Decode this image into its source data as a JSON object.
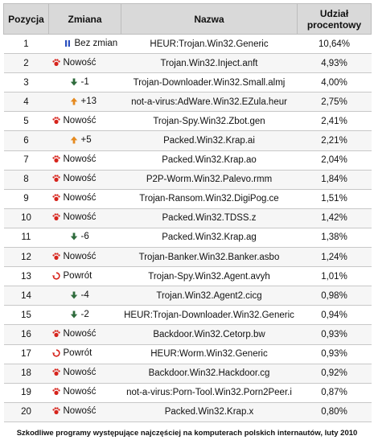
{
  "headers": {
    "position": "Pozycja",
    "change": "Zmiana",
    "name": "Nazwa",
    "share_line1": "Udział",
    "share_line2": "procentowy"
  },
  "icon_colors": {
    "new": "#d6231b",
    "return": "#d6231b",
    "down": "#2e6b3c",
    "up": "#e58a1f",
    "same": "#2a4fbf"
  },
  "rows": [
    {
      "pos": "1",
      "icon": "same-icon",
      "change": "Bez zmian",
      "name": "HEUR:Trojan.Win32.Generic",
      "pct": "10,64%"
    },
    {
      "pos": "2",
      "icon": "new-icon",
      "change": "Nowość",
      "name": "Trojan.Win32.Inject.anft",
      "pct": "4,93%"
    },
    {
      "pos": "3",
      "icon": "down-arrow-icon",
      "change": "-1",
      "name": "Trojan-Downloader.Win32.Small.almj",
      "pct": "4,00%"
    },
    {
      "pos": "4",
      "icon": "up-arrow-icon",
      "change": "+13",
      "name": "not-a-virus:AdWare.Win32.EZula.heur",
      "pct": "2,75%"
    },
    {
      "pos": "5",
      "icon": "new-icon",
      "change": "Nowość",
      "name": "Trojan-Spy.Win32.Zbot.gen",
      "pct": "2,41%"
    },
    {
      "pos": "6",
      "icon": "up-arrow-icon",
      "change": "+5",
      "name": "Packed.Win32.Krap.ai",
      "pct": "2,21%"
    },
    {
      "pos": "7",
      "icon": "new-icon",
      "change": "Nowość",
      "name": "Packed.Win32.Krap.ao",
      "pct": "2,04%"
    },
    {
      "pos": "8",
      "icon": "new-icon",
      "change": "Nowość",
      "name": "P2P-Worm.Win32.Palevo.rmm",
      "pct": "1,84%"
    },
    {
      "pos": "9",
      "icon": "new-icon",
      "change": "Nowość",
      "name": "Trojan-Ransom.Win32.DigiPog.ce",
      "pct": "1,51%"
    },
    {
      "pos": "10",
      "icon": "new-icon",
      "change": "Nowość",
      "name": "Packed.Win32.TDSS.z",
      "pct": "1,42%"
    },
    {
      "pos": "11",
      "icon": "down-arrow-icon",
      "change": "-6",
      "name": "Packed.Win32.Krap.ag",
      "pct": "1,38%"
    },
    {
      "pos": "12",
      "icon": "new-icon",
      "change": "Nowość",
      "name": "Trojan-Banker.Win32.Banker.asbo",
      "pct": "1,24%"
    },
    {
      "pos": "13",
      "icon": "return-icon",
      "change": "Powrót",
      "name": "Trojan-Spy.Win32.Agent.avyh",
      "pct": "1,01%"
    },
    {
      "pos": "14",
      "icon": "down-arrow-icon",
      "change": "-4",
      "name": "Trojan.Win32.Agent2.cicg",
      "pct": "0,98%"
    },
    {
      "pos": "15",
      "icon": "down-arrow-icon",
      "change": "-2",
      "name": "HEUR:Trojan-Downloader.Win32.Generic",
      "pct": "0,94%"
    },
    {
      "pos": "16",
      "icon": "new-icon",
      "change": "Nowość",
      "name": "Backdoor.Win32.Cetorp.bw",
      "pct": "0,93%"
    },
    {
      "pos": "17",
      "icon": "return-icon",
      "change": "Powrót",
      "name": "HEUR:Worm.Win32.Generic",
      "pct": "0,93%"
    },
    {
      "pos": "18",
      "icon": "new-icon",
      "change": "Nowość",
      "name": "Backdoor.Win32.Hackdoor.cg",
      "pct": "0,92%"
    },
    {
      "pos": "19",
      "icon": "new-icon",
      "change": "Nowość",
      "name": "not-a-virus:Porn-Tool.Win32.Porn2Peer.i",
      "pct": "0,87%"
    },
    {
      "pos": "20",
      "icon": "new-icon",
      "change": "Nowość",
      "name": "Packed.Win32.Krap.x",
      "pct": "0,80%"
    }
  ],
  "caption": "Szkodliwe programy występujące najczęściej na komputerach polskich internautów, luty 2010"
}
